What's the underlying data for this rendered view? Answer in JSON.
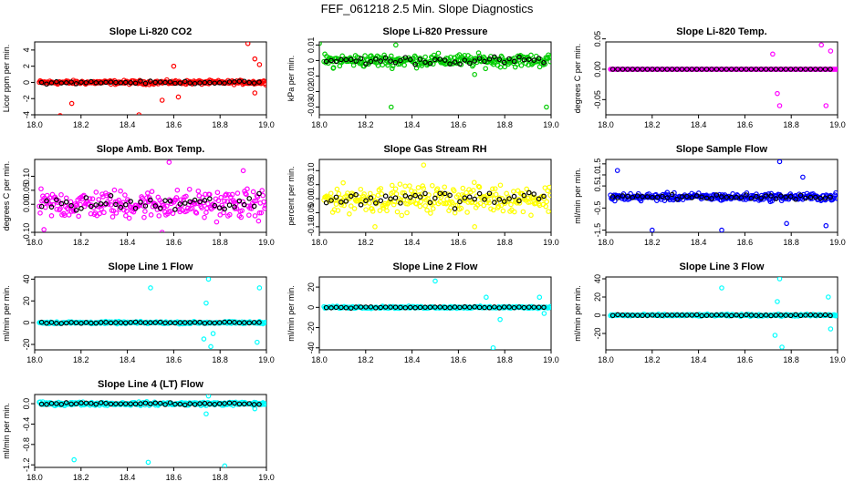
{
  "main_title": "FEF_061218  2.5 Min. Slope Diagnostics",
  "chart_data": [
    {
      "type": "scatter",
      "title": "Slope Li-820 CO2",
      "ylabel": "Licor ppm per min.",
      "xlim": [
        18.0,
        19.0
      ],
      "ylim": [
        -4,
        5
      ],
      "xticks": [
        "18.0",
        "18.2",
        "18.4",
        "18.6",
        "18.8",
        "19.0"
      ],
      "yticks": [
        "-4",
        "-2",
        "0",
        "2",
        "4"
      ],
      "ytick_values": [
        -4,
        -2,
        0,
        2,
        4
      ],
      "color": "#ff0000",
      "spread": 0.35,
      "outliers": [
        [
          18.11,
          -4.1
        ],
        [
          18.16,
          -2.6
        ],
        [
          18.45,
          -4
        ],
        [
          18.55,
          -2.2
        ],
        [
          18.6,
          2.0
        ],
        [
          18.62,
          -1.8
        ],
        [
          18.92,
          4.8
        ],
        [
          18.95,
          -1.3
        ],
        [
          18.95,
          2.9
        ],
        [
          18.97,
          2.2
        ]
      ]
    },
    {
      "type": "scatter",
      "title": "Slope Li-820 Pressure",
      "ylabel": "kPa per min.",
      "xlim": [
        18.0,
        19.0
      ],
      "ylim": [
        -0.035,
        0.012
      ],
      "xticks": [
        "18.0",
        "18.2",
        "18.4",
        "18.6",
        "18.8",
        "19.0"
      ],
      "yticks": [
        "-0.03",
        "-0.02",
        "-0.01",
        "0",
        "0.01"
      ],
      "ytick_values": [
        -0.03,
        -0.02,
        -0.01,
        0,
        0.01
      ],
      "color": "#00cc00",
      "spread": 0.006,
      "outliers": [
        [
          18.0,
          0.011
        ],
        [
          18.06,
          -0.005
        ],
        [
          18.31,
          -0.03
        ],
        [
          18.33,
          0.01
        ],
        [
          18.98,
          -0.03
        ],
        [
          18.67,
          -0.009
        ]
      ]
    },
    {
      "type": "scatter",
      "title": "Slope Li-820 Temp.",
      "ylabel": "degrees C per min.",
      "xlim": [
        18.0,
        19.0
      ],
      "ylim": [
        -0.075,
        0.045
      ],
      "xticks": [
        "18.0",
        "18.2",
        "18.4",
        "18.6",
        "18.8",
        "19.0"
      ],
      "yticks": [
        "-0.05",
        "0.00",
        "0.05"
      ],
      "ytick_values": [
        -0.05,
        0,
        0.05
      ],
      "color": "#ff00ff",
      "spread": 0.0,
      "outliers": [
        [
          18.72,
          0.025
        ],
        [
          18.74,
          -0.04
        ],
        [
          18.75,
          -0.06
        ],
        [
          18.93,
          0.04
        ],
        [
          18.95,
          -0.06
        ],
        [
          18.97,
          0.03
        ]
      ]
    },
    {
      "type": "scatter",
      "title": "Slope Amb. Box Temp.",
      "ylabel": "degrees C per min.",
      "xlim": [
        18.0,
        19.0
      ],
      "ylim": [
        -0.1,
        0.16
      ],
      "xticks": [
        "18.0",
        "18.2",
        "18.4",
        "18.6",
        "18.8",
        "19.0"
      ],
      "yticks": [
        "-0.10",
        "0.00",
        "0.05",
        "0.10"
      ],
      "ytick_values": [
        -0.1,
        0,
        0.05,
        0.1
      ],
      "color": "#ff00ff",
      "spread": 0.075,
      "outliers": [
        [
          18.55,
          -0.1
        ],
        [
          18.58,
          0.15
        ],
        [
          18.9,
          0.12
        ],
        [
          18.04,
          -0.09
        ]
      ]
    },
    {
      "type": "scatter",
      "title": "Slope Gas Stream RH",
      "ylabel": "percent per min.",
      "xlim": [
        18.0,
        19.0
      ],
      "ylim": [
        -0.12,
        0.14
      ],
      "xticks": [
        "18.0",
        "18.2",
        "18.4",
        "18.6",
        "18.8",
        "19.0"
      ],
      "yticks": [
        "-0.10",
        "-0.05",
        "0.00",
        "0.05",
        "0.10"
      ],
      "ytick_values": [
        -0.1,
        -0.05,
        0,
        0.05,
        0.1
      ],
      "color": "#ffff00",
      "spread": 0.07,
      "outliers": [
        [
          18.45,
          0.12
        ],
        [
          18.67,
          -0.1
        ],
        [
          18.24,
          -0.1
        ]
      ]
    },
    {
      "type": "scatter",
      "title": "Slope Sample Flow",
      "ylabel": "ml/min per min.",
      "xlim": [
        18.0,
        19.0
      ],
      "ylim": [
        -1.6,
        1.7
      ],
      "xticks": [
        "18.0",
        "18.2",
        "18.4",
        "18.6",
        "18.8",
        "19.0"
      ],
      "yticks": [
        "-1.5",
        "-0.5",
        "0.5",
        "1.0",
        "1.5"
      ],
      "ytick_values": [
        -1.5,
        -0.5,
        0.5,
        1.0,
        1.5
      ],
      "color": "#0000ff",
      "spread": 0.25,
      "outliers": [
        [
          18.05,
          1.2
        ],
        [
          18.2,
          -1.5
        ],
        [
          18.5,
          -1.5
        ],
        [
          18.75,
          1.6
        ],
        [
          18.78,
          -1.2
        ],
        [
          18.85,
          0.9
        ],
        [
          18.95,
          -1.3
        ]
      ]
    },
    {
      "type": "scatter",
      "title": "Slope Line 1 Flow",
      "ylabel": "ml/min per min.",
      "xlim": [
        18.0,
        19.0
      ],
      "ylim": [
        -25,
        42
      ],
      "xticks": [
        "18.0",
        "18.2",
        "18.4",
        "18.6",
        "18.8",
        "19.0"
      ],
      "yticks": [
        "-20",
        "0",
        "20",
        "40"
      ],
      "ytick_values": [
        -20,
        0,
        20,
        40
      ],
      "color": "#00ffff",
      "spread": 1.5,
      "outliers": [
        [
          18.5,
          32
        ],
        [
          18.75,
          40
        ],
        [
          18.73,
          -15
        ],
        [
          18.76,
          -22
        ],
        [
          18.77,
          -10
        ],
        [
          18.74,
          18
        ],
        [
          18.97,
          32
        ],
        [
          18.96,
          -18
        ]
      ]
    },
    {
      "type": "scatter",
      "title": "Slope Line 2 Flow",
      "ylabel": "ml/min per min.",
      "xlim": [
        18.0,
        19.0
      ],
      "ylim": [
        -42,
        30
      ],
      "xticks": [
        "18.0",
        "18.2",
        "18.4",
        "18.6",
        "18.8",
        "19.0"
      ],
      "yticks": [
        "-40",
        "-20",
        "0",
        "20"
      ],
      "ytick_values": [
        -40,
        -20,
        0,
        20
      ],
      "color": "#00ffff",
      "spread": 1.5,
      "outliers": [
        [
          18.5,
          26
        ],
        [
          18.75,
          -40
        ],
        [
          18.72,
          10
        ],
        [
          18.78,
          -12
        ],
        [
          18.97,
          -6
        ],
        [
          18.95,
          10
        ]
      ]
    },
    {
      "type": "scatter",
      "title": "Slope Line 3 Flow",
      "ylabel": "ml/min per min.",
      "xlim": [
        18.0,
        19.0
      ],
      "ylim": [
        -38,
        42
      ],
      "xticks": [
        "18.0",
        "18.2",
        "18.4",
        "18.6",
        "18.8",
        "19.0"
      ],
      "yticks": [
        "-20",
        "0",
        "20",
        "40"
      ],
      "ytick_values": [
        -20,
        0,
        20,
        40
      ],
      "color": "#00ffff",
      "spread": 1.5,
      "outliers": [
        [
          18.5,
          30
        ],
        [
          18.75,
          40
        ],
        [
          18.73,
          -22
        ],
        [
          18.76,
          -35
        ],
        [
          18.74,
          15
        ],
        [
          18.96,
          20
        ],
        [
          18.97,
          -15
        ]
      ]
    },
    {
      "type": "scatter",
      "title": "Slope Line 4 (LT) Flow",
      "ylabel": "ml/min per min.",
      "xlim": [
        18.0,
        19.0
      ],
      "ylim": [
        -1.25,
        0.18
      ],
      "xticks": [
        "18.0",
        "18.2",
        "18.4",
        "18.6",
        "18.8",
        "19.0"
      ],
      "yticks": [
        "-1.2",
        "-0.8",
        "-0.4",
        "0.0"
      ],
      "ytick_values": [
        -1.2,
        -0.8,
        -0.4,
        0.0
      ],
      "color": "#00ffff",
      "spread": 0.05,
      "outliers": [
        [
          18.17,
          -1.1
        ],
        [
          18.49,
          -1.15
        ],
        [
          18.82,
          -1.22
        ],
        [
          18.74,
          -0.2
        ],
        [
          18.75,
          0.15
        ],
        [
          18.95,
          -0.1
        ]
      ]
    }
  ]
}
